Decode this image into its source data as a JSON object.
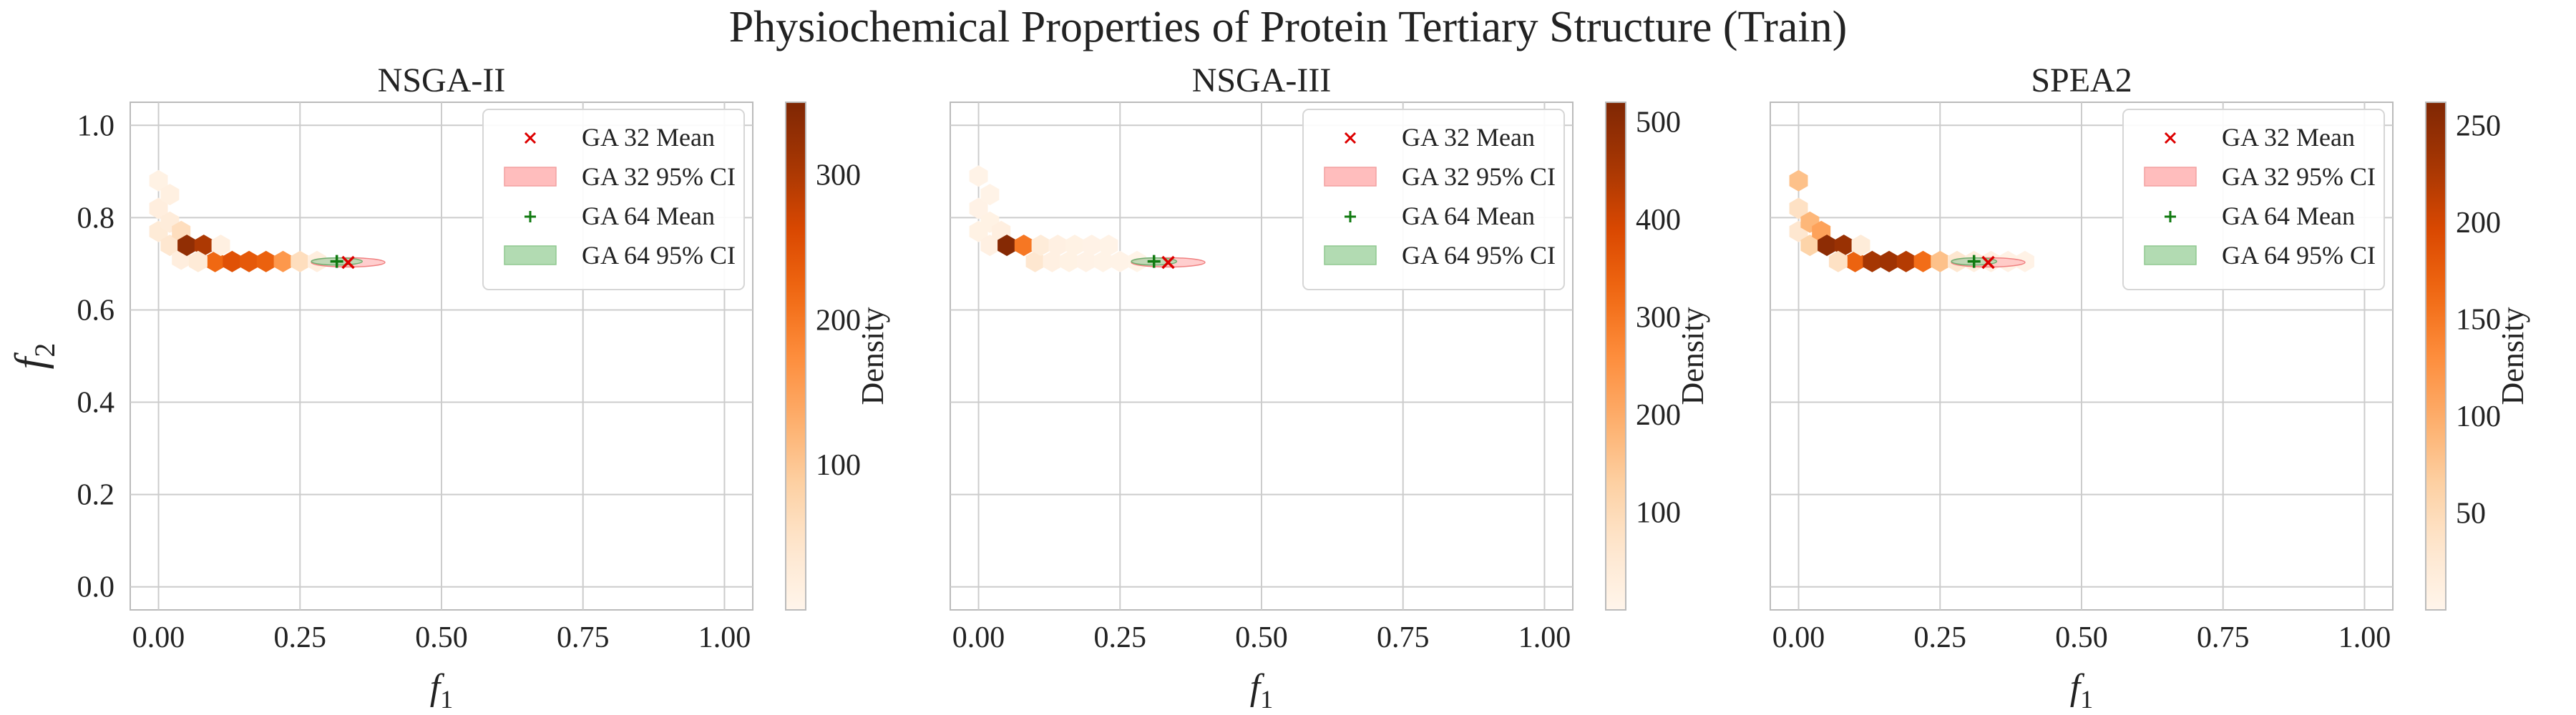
{
  "figure": {
    "title": "Physiochemical Properties of Protein Tertiary Structure (Train)"
  },
  "chart_data": [
    {
      "type": "hexbin",
      "title": "NSGA-II",
      "xlabel": "f1",
      "ylabel": "f2",
      "xlim": [
        -0.05,
        1.05
      ],
      "ylim": [
        -0.05,
        1.05
      ],
      "xticks": [
        "0.00",
        "0.25",
        "0.50",
        "0.75",
        "1.00"
      ],
      "yticks": [
        "0.0",
        "0.2",
        "0.4",
        "0.6",
        "0.8",
        "1.0"
      ],
      "grid": true,
      "legend_position": "top-right",
      "legend": [
        "GA 32 Mean",
        "GA 32 95% CI",
        "GA 64 Mean",
        "GA 64 95% CI"
      ],
      "colorbar": {
        "label": "Density",
        "min": 0,
        "max": 350,
        "ticks": [
          "100",
          "200",
          "300"
        ]
      },
      "hexbins": [
        {
          "x": 0.0,
          "y": 0.88,
          "d": 10
        },
        {
          "x": 0.0,
          "y": 0.82,
          "d": 20
        },
        {
          "x": 0.0,
          "y": 0.77,
          "d": 30
        },
        {
          "x": 0.02,
          "y": 0.85,
          "d": 15
        },
        {
          "x": 0.02,
          "y": 0.79,
          "d": 25
        },
        {
          "x": 0.02,
          "y": 0.74,
          "d": 40
        },
        {
          "x": 0.04,
          "y": 0.77,
          "d": 60
        },
        {
          "x": 0.04,
          "y": 0.71,
          "d": 20
        },
        {
          "x": 0.05,
          "y": 0.74,
          "d": 330
        },
        {
          "x": 0.08,
          "y": 0.74,
          "d": 300
        },
        {
          "x": 0.1,
          "y": 0.705,
          "d": 220
        },
        {
          "x": 0.13,
          "y": 0.705,
          "d": 250
        },
        {
          "x": 0.16,
          "y": 0.705,
          "d": 240
        },
        {
          "x": 0.19,
          "y": 0.705,
          "d": 230
        },
        {
          "x": 0.22,
          "y": 0.705,
          "d": 160
        },
        {
          "x": 0.25,
          "y": 0.705,
          "d": 60
        },
        {
          "x": 0.28,
          "y": 0.705,
          "d": 20
        },
        {
          "x": 0.11,
          "y": 0.74,
          "d": 15
        },
        {
          "x": 0.07,
          "y": 0.705,
          "d": 30
        }
      ],
      "series": [
        {
          "name": "GA 32 Mean",
          "x": 0.335,
          "y": 0.703,
          "ci_x": [
            0.27,
            0.4
          ],
          "ci_y": [
            0.693,
            0.713
          ]
        },
        {
          "name": "GA 64 Mean",
          "x": 0.315,
          "y": 0.705,
          "ci_x": [
            0.27,
            0.36
          ],
          "ci_y": [
            0.698,
            0.712
          ]
        }
      ]
    },
    {
      "type": "hexbin",
      "title": "NSGA-III",
      "xlabel": "f1",
      "xlim": [
        -0.05,
        1.05
      ],
      "ylim": [
        -0.05,
        1.05
      ],
      "xticks": [
        "0.00",
        "0.25",
        "0.50",
        "0.75",
        "1.00"
      ],
      "grid": true,
      "legend_position": "top-right",
      "legend": [
        "GA 32 Mean",
        "GA 32 95% CI",
        "GA 64 Mean",
        "GA 64 95% CI"
      ],
      "colorbar": {
        "label": "Density",
        "min": 0,
        "max": 520,
        "ticks": [
          "100",
          "200",
          "300",
          "400",
          "500"
        ]
      },
      "hexbins": [
        {
          "x": 0.0,
          "y": 0.89,
          "d": 8
        },
        {
          "x": 0.0,
          "y": 0.82,
          "d": 12
        },
        {
          "x": 0.0,
          "y": 0.77,
          "d": 15
        },
        {
          "x": 0.02,
          "y": 0.85,
          "d": 10
        },
        {
          "x": 0.02,
          "y": 0.79,
          "d": 15
        },
        {
          "x": 0.02,
          "y": 0.74,
          "d": 20
        },
        {
          "x": 0.04,
          "y": 0.77,
          "d": 25
        },
        {
          "x": 0.05,
          "y": 0.74,
          "d": 510
        },
        {
          "x": 0.08,
          "y": 0.74,
          "d": 300
        },
        {
          "x": 0.1,
          "y": 0.705,
          "d": 60
        },
        {
          "x": 0.11,
          "y": 0.74,
          "d": 40
        },
        {
          "x": 0.13,
          "y": 0.705,
          "d": 20
        },
        {
          "x": 0.14,
          "y": 0.74,
          "d": 20
        },
        {
          "x": 0.16,
          "y": 0.705,
          "d": 15
        },
        {
          "x": 0.17,
          "y": 0.74,
          "d": 15
        },
        {
          "x": 0.19,
          "y": 0.705,
          "d": 12
        },
        {
          "x": 0.2,
          "y": 0.74,
          "d": 12
        },
        {
          "x": 0.22,
          "y": 0.705,
          "d": 10
        },
        {
          "x": 0.23,
          "y": 0.74,
          "d": 10
        },
        {
          "x": 0.25,
          "y": 0.705,
          "d": 8
        },
        {
          "x": 0.28,
          "y": 0.705,
          "d": 6
        }
      ],
      "series": [
        {
          "name": "GA 32 Mean",
          "x": 0.335,
          "y": 0.703,
          "ci_x": [
            0.27,
            0.4
          ],
          "ci_y": [
            0.693,
            0.713
          ]
        },
        {
          "name": "GA 64 Mean",
          "x": 0.31,
          "y": 0.705,
          "ci_x": [
            0.27,
            0.35
          ],
          "ci_y": [
            0.698,
            0.712
          ]
        }
      ]
    },
    {
      "type": "hexbin",
      "title": "SPEA2",
      "xlabel": "f1",
      "xlim": [
        -0.05,
        1.05
      ],
      "ylim": [
        -0.05,
        1.05
      ],
      "xticks": [
        "0.00",
        "0.25",
        "0.50",
        "0.75",
        "1.00"
      ],
      "grid": true,
      "legend_position": "top-right",
      "legend": [
        "GA 32 Mean",
        "GA 32 95% CI",
        "GA 64 Mean",
        "GA 64 95% CI"
      ],
      "colorbar": {
        "label": "Density",
        "min": 0,
        "max": 262,
        "ticks": [
          "50",
          "100",
          "150",
          "200",
          "250"
        ]
      },
      "hexbins": [
        {
          "x": 0.0,
          "y": 0.88,
          "d": 80
        },
        {
          "x": 0.0,
          "y": 0.82,
          "d": 40
        },
        {
          "x": 0.0,
          "y": 0.77,
          "d": 30
        },
        {
          "x": 0.02,
          "y": 0.79,
          "d": 90
        },
        {
          "x": 0.02,
          "y": 0.74,
          "d": 60
        },
        {
          "x": 0.04,
          "y": 0.77,
          "d": 110
        },
        {
          "x": 0.05,
          "y": 0.74,
          "d": 250
        },
        {
          "x": 0.08,
          "y": 0.74,
          "d": 240
        },
        {
          "x": 0.1,
          "y": 0.705,
          "d": 170
        },
        {
          "x": 0.13,
          "y": 0.705,
          "d": 230
        },
        {
          "x": 0.16,
          "y": 0.705,
          "d": 235
        },
        {
          "x": 0.19,
          "y": 0.705,
          "d": 220
        },
        {
          "x": 0.22,
          "y": 0.705,
          "d": 160
        },
        {
          "x": 0.25,
          "y": 0.705,
          "d": 80
        },
        {
          "x": 0.28,
          "y": 0.705,
          "d": 30
        },
        {
          "x": 0.31,
          "y": 0.705,
          "d": 15
        },
        {
          "x": 0.34,
          "y": 0.705,
          "d": 10
        },
        {
          "x": 0.37,
          "y": 0.705,
          "d": 8
        },
        {
          "x": 0.4,
          "y": 0.705,
          "d": 6
        },
        {
          "x": 0.11,
          "y": 0.74,
          "d": 20
        },
        {
          "x": 0.07,
          "y": 0.705,
          "d": 40
        }
      ],
      "series": [
        {
          "name": "GA 32 Mean",
          "x": 0.335,
          "y": 0.703,
          "ci_x": [
            0.27,
            0.4
          ],
          "ci_y": [
            0.693,
            0.713
          ]
        },
        {
          "name": "GA 64 Mean",
          "x": 0.31,
          "y": 0.705,
          "ci_x": [
            0.27,
            0.35
          ],
          "ci_y": [
            0.698,
            0.712
          ]
        }
      ]
    }
  ],
  "colors": {
    "ga32_mean": "#dd0000",
    "ga32_ci": "#ffbdbd",
    "ga64_mean": "#117a11",
    "ga64_ci": "#b2dbb2",
    "grid": "#cccccc",
    "axis": "#bbbbbb",
    "text": "#222222"
  }
}
